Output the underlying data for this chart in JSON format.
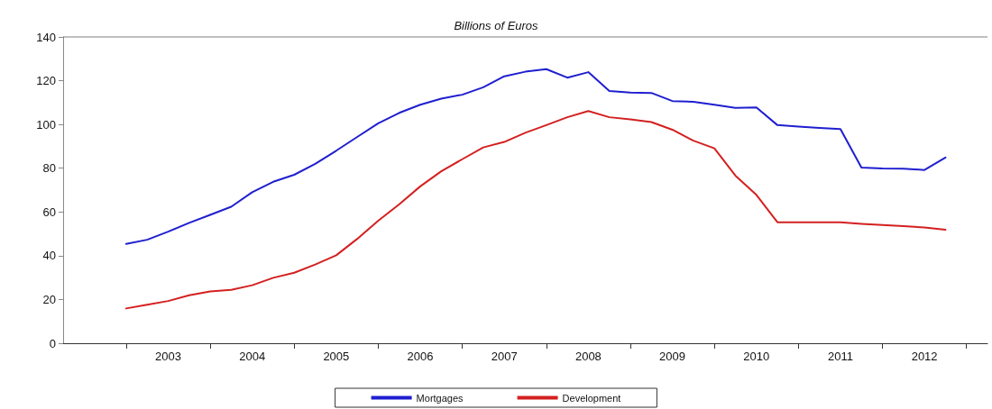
{
  "chart_data": {
    "type": "line",
    "subtitle": "Billions of Euros",
    "x": [
      2003,
      2003.25,
      2003.5,
      2003.75,
      2004,
      2004.25,
      2004.5,
      2004.75,
      2005,
      2005.25,
      2005.5,
      2005.75,
      2006,
      2006.25,
      2006.5,
      2006.75,
      2007,
      2007.25,
      2007.5,
      2007.75,
      2008,
      2008.25,
      2008.5,
      2008.75,
      2009,
      2009.25,
      2009.5,
      2009.75,
      2010,
      2010.25,
      2010.5,
      2010.75,
      2011,
      2011.25,
      2011.5,
      2011.75,
      2012,
      2012.25,
      2012.5,
      2012.75
    ],
    "series": [
      {
        "name": "Mortgages",
        "color": "#1f1fd0",
        "values": [
          45.4,
          47.3,
          51,
          55,
          58.7,
          62.4,
          69,
          73.8,
          77,
          82,
          88,
          94.3,
          100.5,
          105.3,
          109,
          111.8,
          113.6,
          117,
          122,
          124.1,
          125.3,
          121.4,
          123.9,
          115.3,
          114.6,
          114.4,
          110.7,
          110.4,
          109,
          107.6,
          107.8,
          99.7,
          99,
          98.4,
          97.9,
          80.3,
          79.9,
          79.8,
          79.2,
          84.9
        ]
      },
      {
        "name": "Development",
        "color": "#d42020",
        "values": [
          15.9,
          17.6,
          19.3,
          21.9,
          23.7,
          24.4,
          26.5,
          29.9,
          32.2,
          36,
          40.2,
          47.7,
          56,
          63.5,
          71.7,
          78.6,
          84.1,
          89.5,
          92,
          96.2,
          99.7,
          103.3,
          106.1,
          103.3,
          102.3,
          101.1,
          97.6,
          92.6,
          89.1,
          76.6,
          67.8,
          55.3,
          55.3,
          55.3,
          55.3,
          54.6,
          54,
          53.5,
          52.9,
          51.9
        ]
      }
    ],
    "xlim": [
      2002.25,
      2013.25
    ],
    "xticks": [
      {
        "value": 2003,
        "label": null
      },
      {
        "value": 2003.5,
        "label": "2003"
      },
      {
        "value": 2004,
        "label": null
      },
      {
        "value": 2004.5,
        "label": "2004"
      },
      {
        "value": 2005,
        "label": null
      },
      {
        "value": 2005.5,
        "label": "2005"
      },
      {
        "value": 2006,
        "label": null
      },
      {
        "value": 2006.5,
        "label": "2006"
      },
      {
        "value": 2007,
        "label": null
      },
      {
        "value": 2007.5,
        "label": "2007"
      },
      {
        "value": 2008,
        "label": null
      },
      {
        "value": 2008.5,
        "label": "2008"
      },
      {
        "value": 2009,
        "label": null
      },
      {
        "value": 2009.5,
        "label": "2009"
      },
      {
        "value": 2010,
        "label": null
      },
      {
        "value": 2010.5,
        "label": "2010"
      },
      {
        "value": 2011,
        "label": null
      },
      {
        "value": 2011.5,
        "label": "2011"
      },
      {
        "value": 2012,
        "label": null
      },
      {
        "value": 2012.5,
        "label": "2012"
      },
      {
        "value": 2013,
        "label": null
      }
    ],
    "ylim": [
      0,
      140
    ],
    "yticks": [
      0,
      20,
      40,
      60,
      80,
      100,
      120,
      140
    ],
    "grid": false,
    "legend": "bottom",
    "marker": "none",
    "line_style": "solid"
  }
}
